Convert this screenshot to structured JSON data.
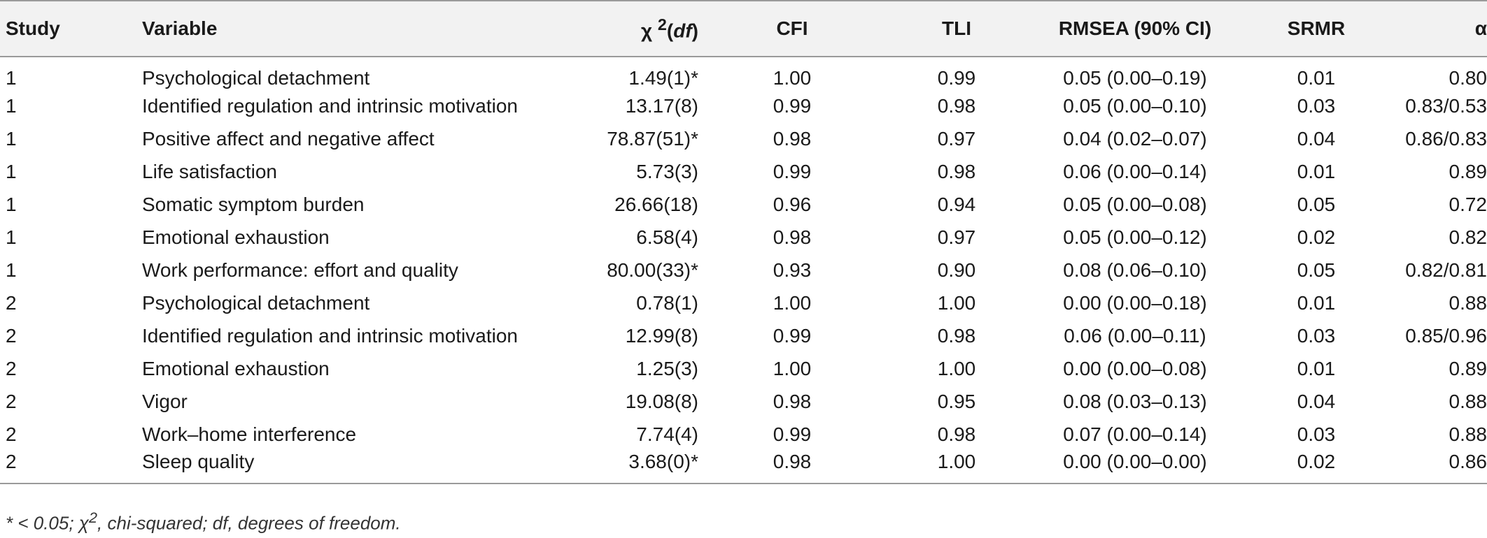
{
  "table": {
    "headers": {
      "study": "Study",
      "variable": "Variable",
      "chi_prefix": "χ ",
      "chi_sup": "2",
      "chi_open": "(",
      "chi_df": "df",
      "chi_close": ")",
      "cfi": "CFI",
      "tli": "TLI",
      "rmsea": "RMSEA (90% CI)",
      "srmr": "SRMR",
      "alpha": "α"
    },
    "rows": [
      {
        "study": "1",
        "variable": "Psychological detachment",
        "chi": "1.49(1)*",
        "cfi": "1.00",
        "tli": "0.99",
        "rmsea": "0.05 (0.00–0.19)",
        "srmr": "0.01",
        "alpha": "0.80"
      },
      {
        "study": "1",
        "variable": "Identified regulation and intrinsic motivation",
        "chi": "13.17(8)",
        "cfi": "0.99",
        "tli": "0.98",
        "rmsea": "0.05 (0.00–0.10)",
        "srmr": "0.03",
        "alpha": "0.83/0.53"
      },
      {
        "study": "1",
        "variable": "Positive affect and negative affect",
        "chi": "78.87(51)*",
        "cfi": "0.98",
        "tli": "0.97",
        "rmsea": "0.04 (0.02–0.07)",
        "srmr": "0.04",
        "alpha": "0.86/0.83"
      },
      {
        "study": "1",
        "variable": "Life satisfaction",
        "chi": "5.73(3)",
        "cfi": "0.99",
        "tli": "0.98",
        "rmsea": "0.06 (0.00–0.14)",
        "srmr": "0.01",
        "alpha": "0.89"
      },
      {
        "study": "1",
        "variable": "Somatic symptom burden",
        "chi": "26.66(18)",
        "cfi": "0.96",
        "tli": "0.94",
        "rmsea": "0.05 (0.00–0.08)",
        "srmr": "0.05",
        "alpha": "0.72"
      },
      {
        "study": "1",
        "variable": "Emotional exhaustion",
        "chi": "6.58(4)",
        "cfi": "0.98",
        "tli": "0.97",
        "rmsea": "0.05 (0.00–0.12)",
        "srmr": "0.02",
        "alpha": "0.82"
      },
      {
        "study": "1",
        "variable": "Work performance: effort and quality",
        "chi": "80.00(33)*",
        "cfi": "0.93",
        "tli": "0.90",
        "rmsea": "0.08 (0.06–0.10)",
        "srmr": "0.05",
        "alpha": "0.82/0.81"
      },
      {
        "study": "2",
        "variable": "Psychological detachment",
        "chi": "0.78(1)",
        "cfi": "1.00",
        "tli": "1.00",
        "rmsea": "0.00 (0.00–0.18)",
        "srmr": "0.01",
        "alpha": "0.88"
      },
      {
        "study": "2",
        "variable": "Identified regulation and intrinsic motivation",
        "chi": "12.99(8)",
        "cfi": "0.99",
        "tli": "0.98",
        "rmsea": "0.06 (0.00–0.11)",
        "srmr": "0.03",
        "alpha": "0.85/0.96"
      },
      {
        "study": "2",
        "variable": "Emotional exhaustion",
        "chi": "1.25(3)",
        "cfi": "1.00",
        "tli": "1.00",
        "rmsea": "0.00 (0.00–0.08)",
        "srmr": "0.01",
        "alpha": "0.89"
      },
      {
        "study": "2",
        "variable": "Vigor",
        "chi": "19.08(8)",
        "cfi": "0.98",
        "tli": "0.95",
        "rmsea": "0.08 (0.03–0.13)",
        "srmr": "0.04",
        "alpha": "0.88"
      },
      {
        "study": "2",
        "variable": "Work–home interference",
        "chi": "7.74(4)",
        "cfi": "0.99",
        "tli": "0.98",
        "rmsea": "0.07 (0.00–0.14)",
        "srmr": "0.03",
        "alpha": "0.88"
      },
      {
        "study": "2",
        "variable": "Sleep quality",
        "chi": "3.68(0)*",
        "cfi": "0.98",
        "tli": "1.00",
        "rmsea": "0.00 (0.00–0.00)",
        "srmr": "0.02",
        "alpha": "0.86"
      }
    ]
  },
  "footnote": {
    "part1": "* < 0.05; χ",
    "sup": "2",
    "part2": ", chi-squared; df, degrees of freedom."
  }
}
